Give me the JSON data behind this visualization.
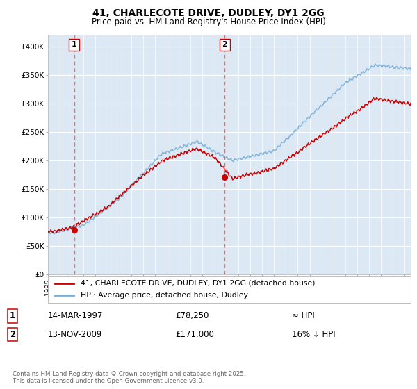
{
  "title1": "41, CHARLECOTE DRIVE, DUDLEY, DY1 2GG",
  "title2": "Price paid vs. HM Land Registry's House Price Index (HPI)",
  "bg_color": "#dce9f5",
  "bg_color_right": "#e8eef5",
  "line1_color": "#cc0000",
  "line2_color": "#7aaed6",
  "marker_color": "#cc0000",
  "vline_color": "#ff6666",
  "ylim": [
    0,
    420000
  ],
  "yticks": [
    0,
    50000,
    100000,
    150000,
    200000,
    250000,
    300000,
    350000,
    400000
  ],
  "ytick_labels": [
    "£0",
    "£50K",
    "£100K",
    "£150K",
    "£200K",
    "£250K",
    "£300K",
    "£350K",
    "£400K"
  ],
  "xmin": 1995,
  "xmax": 2025.5,
  "sale1_year": 1997.2,
  "sale1_price": 78250,
  "sale2_year": 2009.87,
  "sale2_price": 171000,
  "hpi_start_year": 1995.0,
  "legend1": "41, CHARLECOTE DRIVE, DUDLEY, DY1 2GG (detached house)",
  "legend2": "HPI: Average price, detached house, Dudley",
  "annot1_date": "14-MAR-1997",
  "annot1_price": "£78,250",
  "annot1_hpi": "≈ HPI",
  "annot2_date": "13-NOV-2009",
  "annot2_price": "£171,000",
  "annot2_hpi": "16% ↓ HPI",
  "footer": "Contains HM Land Registry data © Crown copyright and database right 2025.\nThis data is licensed under the Open Government Licence v3.0."
}
